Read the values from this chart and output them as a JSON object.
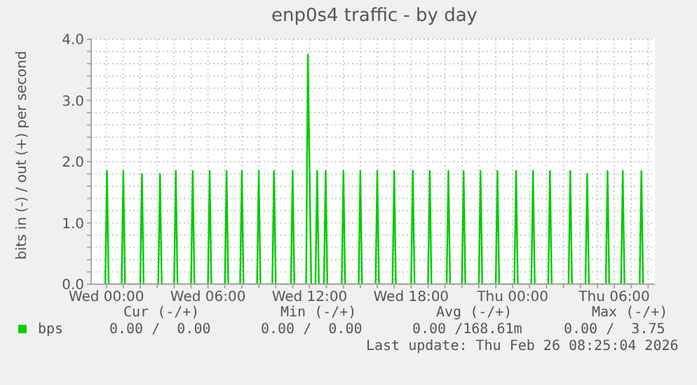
{
  "chart_data": {
    "type": "line",
    "title": "enp0s4 traffic - by day",
    "ylabel": "bits in (-) / out (+) per second",
    "x": [
      "2026-02-24T23:56",
      "2026-02-25T00:02",
      "2026-02-25T00:08",
      "2026-02-25T00:54",
      "2026-02-25T01:00",
      "2026-02-25T01:06",
      "2026-02-25T02:00",
      "2026-02-25T02:06",
      "2026-02-25T02:12",
      "2026-02-25T03:04",
      "2026-02-25T03:10",
      "2026-02-25T03:16",
      "2026-02-25T04:00",
      "2026-02-25T04:06",
      "2026-02-25T04:12",
      "2026-02-25T05:00",
      "2026-02-25T05:06",
      "2026-02-25T05:12",
      "2026-02-25T06:00",
      "2026-02-25T06:06",
      "2026-02-25T06:12",
      "2026-02-25T07:00",
      "2026-02-25T07:06",
      "2026-02-25T07:12",
      "2026-02-25T07:54",
      "2026-02-25T08:00",
      "2026-02-25T08:06",
      "2026-02-25T08:54",
      "2026-02-25T09:00",
      "2026-02-25T09:06",
      "2026-02-25T09:48",
      "2026-02-25T09:54",
      "2026-02-25T10:00",
      "2026-02-25T10:54",
      "2026-02-25T11:00",
      "2026-02-25T11:06",
      "2026-02-25T11:48",
      "2026-02-25T11:54",
      "2026-02-25T12:00",
      "2026-02-25T12:06",
      "2026-02-25T12:21",
      "2026-02-25T12:27",
      "2026-02-25T12:33",
      "2026-02-25T12:51",
      "2026-02-25T12:57",
      "2026-02-25T13:03",
      "2026-02-25T13:54",
      "2026-02-25T14:00",
      "2026-02-25T14:06",
      "2026-02-25T14:54",
      "2026-02-25T15:00",
      "2026-02-25T15:06",
      "2026-02-25T15:54",
      "2026-02-25T16:00",
      "2026-02-25T16:06",
      "2026-02-25T16:54",
      "2026-02-25T17:00",
      "2026-02-25T17:06",
      "2026-02-25T18:00",
      "2026-02-25T18:06",
      "2026-02-25T18:12",
      "2026-02-25T19:00",
      "2026-02-25T19:06",
      "2026-02-25T19:12",
      "2026-02-25T20:06",
      "2026-02-25T20:12",
      "2026-02-25T20:18",
      "2026-02-25T21:00",
      "2026-02-25T21:06",
      "2026-02-25T21:12",
      "2026-02-25T22:00",
      "2026-02-25T22:06",
      "2026-02-25T22:12",
      "2026-02-25T23:00",
      "2026-02-25T23:06",
      "2026-02-25T23:12",
      "2026-02-26T00:06",
      "2026-02-26T00:12",
      "2026-02-26T00:18",
      "2026-02-26T01:06",
      "2026-02-26T01:12",
      "2026-02-26T01:18",
      "2026-02-26T02:06",
      "2026-02-26T02:12",
      "2026-02-26T02:18",
      "2026-02-26T03:18",
      "2026-02-26T03:24",
      "2026-02-26T03:30",
      "2026-02-26T04:18",
      "2026-02-26T04:24",
      "2026-02-26T04:30",
      "2026-02-26T05:30",
      "2026-02-26T05:36",
      "2026-02-26T05:42",
      "2026-02-26T06:24",
      "2026-02-26T06:30",
      "2026-02-26T06:36",
      "2026-02-26T07:30",
      "2026-02-26T07:36",
      "2026-02-26T07:42"
    ],
    "series": [
      {
        "name": "bps",
        "color": "#00cc00",
        "values": [
          0,
          1.85,
          0,
          0,
          1.85,
          0,
          0,
          1.8,
          0,
          0,
          1.8,
          0,
          0,
          1.85,
          0,
          0,
          1.85,
          0,
          0,
          1.85,
          0,
          0,
          1.85,
          0,
          0,
          1.85,
          0,
          0,
          1.85,
          0,
          0,
          1.85,
          0,
          0,
          1.85,
          0,
          0,
          3.75,
          1.85,
          0,
          0,
          1.85,
          0,
          0,
          1.85,
          0,
          0,
          1.85,
          0,
          0,
          1.85,
          0,
          0,
          1.85,
          0,
          0,
          1.85,
          0,
          0,
          1.85,
          0,
          0,
          1.85,
          0,
          0,
          1.85,
          0,
          0,
          1.85,
          0,
          0,
          1.85,
          0,
          0,
          1.85,
          0,
          0,
          1.85,
          0,
          0,
          1.85,
          0,
          0,
          1.85,
          0,
          0,
          1.85,
          0,
          0,
          1.8,
          0,
          0,
          1.85,
          0,
          0,
          1.85,
          0,
          0,
          1.85,
          0
        ]
      }
    ],
    "xlim": [
      "2026-02-24T23:06",
      "2026-02-26T08:24"
    ],
    "xticks": [
      {
        "value": "2026-02-25T00:00",
        "label": "Wed 00:00"
      },
      {
        "value": "2026-02-25T01:00",
        "label": null
      },
      {
        "value": "2026-02-25T02:00",
        "label": null
      },
      {
        "value": "2026-02-25T03:00",
        "label": null
      },
      {
        "value": "2026-02-25T04:00",
        "label": null
      },
      {
        "value": "2026-02-25T05:00",
        "label": null
      },
      {
        "value": "2026-02-25T06:00",
        "label": "Wed 06:00"
      },
      {
        "value": "2026-02-25T07:00",
        "label": null
      },
      {
        "value": "2026-02-25T08:00",
        "label": null
      },
      {
        "value": "2026-02-25T09:00",
        "label": null
      },
      {
        "value": "2026-02-25T10:00",
        "label": null
      },
      {
        "value": "2026-02-25T11:00",
        "label": null
      },
      {
        "value": "2026-02-25T12:00",
        "label": "Wed 12:00"
      },
      {
        "value": "2026-02-25T13:00",
        "label": null
      },
      {
        "value": "2026-02-25T14:00",
        "label": null
      },
      {
        "value": "2026-02-25T15:00",
        "label": null
      },
      {
        "value": "2026-02-25T16:00",
        "label": null
      },
      {
        "value": "2026-02-25T17:00",
        "label": null
      },
      {
        "value": "2026-02-25T18:00",
        "label": "Wed 18:00"
      },
      {
        "value": "2026-02-25T19:00",
        "label": null
      },
      {
        "value": "2026-02-25T20:00",
        "label": null
      },
      {
        "value": "2026-02-25T21:00",
        "label": null
      },
      {
        "value": "2026-02-25T22:00",
        "label": null
      },
      {
        "value": "2026-02-25T23:00",
        "label": null
      },
      {
        "value": "2026-02-26T00:00",
        "label": "Thu 00:00"
      },
      {
        "value": "2026-02-26T01:00",
        "label": null
      },
      {
        "value": "2026-02-26T02:00",
        "label": null
      },
      {
        "value": "2026-02-26T03:00",
        "label": null
      },
      {
        "value": "2026-02-26T04:00",
        "label": null
      },
      {
        "value": "2026-02-26T05:00",
        "label": null
      },
      {
        "value": "2026-02-26T06:00",
        "label": "Thu 06:00"
      },
      {
        "value": "2026-02-26T07:00",
        "label": null
      },
      {
        "value": "2026-02-26T08:00",
        "label": null
      }
    ],
    "ylim": [
      0,
      4
    ],
    "yticks": [
      {
        "value": 0,
        "label": "0.0"
      },
      {
        "value": 0.2,
        "label": null
      },
      {
        "value": 0.4,
        "label": null
      },
      {
        "value": 0.6,
        "label": null
      },
      {
        "value": 0.8,
        "label": null
      },
      {
        "value": 1,
        "label": "1.0"
      },
      {
        "value": 1.2,
        "label": null
      },
      {
        "value": 1.4,
        "label": null
      },
      {
        "value": 1.6,
        "label": null
      },
      {
        "value": 1.8,
        "label": null
      },
      {
        "value": 2,
        "label": "2.0"
      },
      {
        "value": 2.2,
        "label": null
      },
      {
        "value": 2.4,
        "label": null
      },
      {
        "value": 2.6,
        "label": null
      },
      {
        "value": 2.8,
        "label": null
      },
      {
        "value": 3,
        "label": "3.0"
      },
      {
        "value": 3.2,
        "label": null
      },
      {
        "value": 3.4,
        "label": null
      },
      {
        "value": 3.6,
        "label": null
      },
      {
        "value": 3.8,
        "label": null
      },
      {
        "value": 4,
        "label": "4.0"
      }
    ],
    "grid": true,
    "legend": "bottom",
    "marker": "none",
    "line_style": "solid",
    "annotations": [
      "Cur (-/+)",
      "Min (-/+)",
      "Avg (-/+)",
      "Max (-/+)",
      "0.00 /  0.00",
      "0.00 /  0.00",
      "0.00 /168.61m",
      "0.00 /  3.75",
      "Last update: Thu Feb 26 08:25:04 2026"
    ]
  }
}
